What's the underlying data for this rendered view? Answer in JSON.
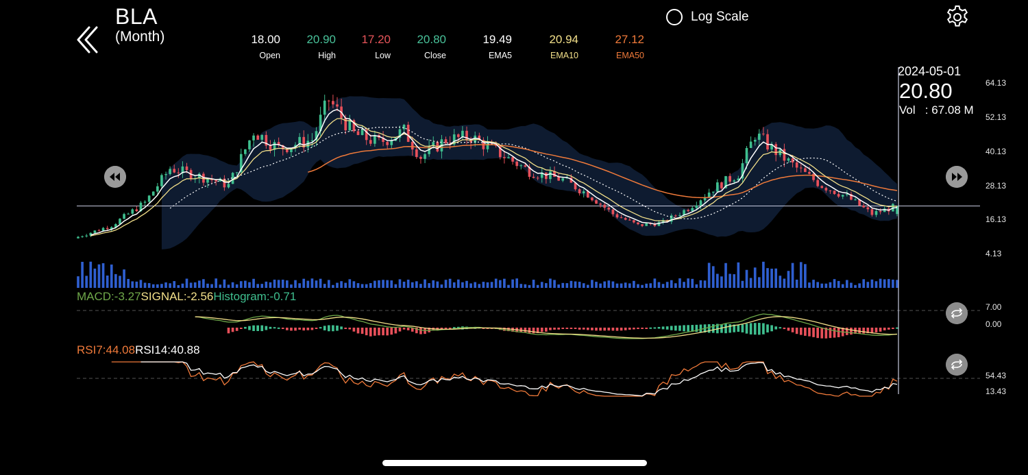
{
  "header": {
    "ticker": "BLA",
    "period": "(Month)",
    "log_scale_label": "Log Scale"
  },
  "ohlc": [
    {
      "value": "18.00",
      "label": "Open",
      "color": "#ffffff"
    },
    {
      "value": "20.90",
      "label": "High",
      "color": "#49c29a"
    },
    {
      "value": "17.20",
      "label": "Low",
      "color": "#e8555a"
    },
    {
      "value": "20.80",
      "label": "Close",
      "color": "#49c29a"
    },
    {
      "value": "19.49",
      "label": "EMA5",
      "color": "#ffffff"
    },
    {
      "value": "20.94",
      "label": "EMA10",
      "color": "#f3e08a"
    },
    {
      "value": "27.12",
      "label": "EMA50",
      "color": "#f07a3a"
    }
  ],
  "crosshair": {
    "date": "2024-05-01",
    "price": "20.80",
    "volume": "Vol   : 67.08 M"
  },
  "price_axis": [
    "64.13",
    "52.13",
    "40.13",
    "28.13",
    "16.13",
    "4.13"
  ],
  "macd": {
    "macd_label": "MACD:-3.27",
    "signal_label": "SIGNAL:-2.56",
    "hist_label": "Histogram:-0.71",
    "axis": [
      "7.00",
      "0.00"
    ]
  },
  "rsi": {
    "rsi7_label": "RSI7:44.08",
    "rsi14_label": "RSI14:40.88",
    "axis": [
      "54.43",
      "13.43"
    ]
  },
  "colors": {
    "up": "#3fbf8f",
    "down": "#e8505a",
    "ema5": "#ffffff",
    "ema10": "#f3e08a",
    "ema50": "#f07a3a",
    "band": "#0f1c33",
    "volume": "#2f5fd0",
    "macd_line": "#6fa84a",
    "signal_line": "#f3e08a",
    "rsi7": "#f07a3a",
    "rsi14": "#ffffff"
  },
  "chart_data": {
    "type": "candlestick",
    "price_range": [
      4.13,
      64.13
    ],
    "pivots": [
      [
        0,
        10
      ],
      [
        8,
        14
      ],
      [
        16,
        22
      ],
      [
        22,
        34
      ],
      [
        32,
        30
      ],
      [
        36,
        28
      ],
      [
        42,
        47
      ],
      [
        48,
        41
      ],
      [
        56,
        44
      ],
      [
        60,
        58
      ],
      [
        66,
        46
      ],
      [
        72,
        43
      ],
      [
        78,
        47
      ],
      [
        82,
        38
      ],
      [
        88,
        44
      ],
      [
        94,
        45
      ],
      [
        100,
        40
      ],
      [
        108,
        33
      ],
      [
        116,
        30
      ],
      [
        122,
        25
      ],
      [
        128,
        18
      ],
      [
        134,
        14
      ],
      [
        140,
        15
      ],
      [
        146,
        20
      ],
      [
        152,
        27
      ],
      [
        158,
        32
      ],
      [
        162,
        46
      ],
      [
        166,
        41
      ],
      [
        172,
        34
      ],
      [
        178,
        28
      ],
      [
        184,
        24
      ],
      [
        190,
        18
      ],
      [
        196,
        20.8
      ]
    ],
    "bars": 197
  }
}
